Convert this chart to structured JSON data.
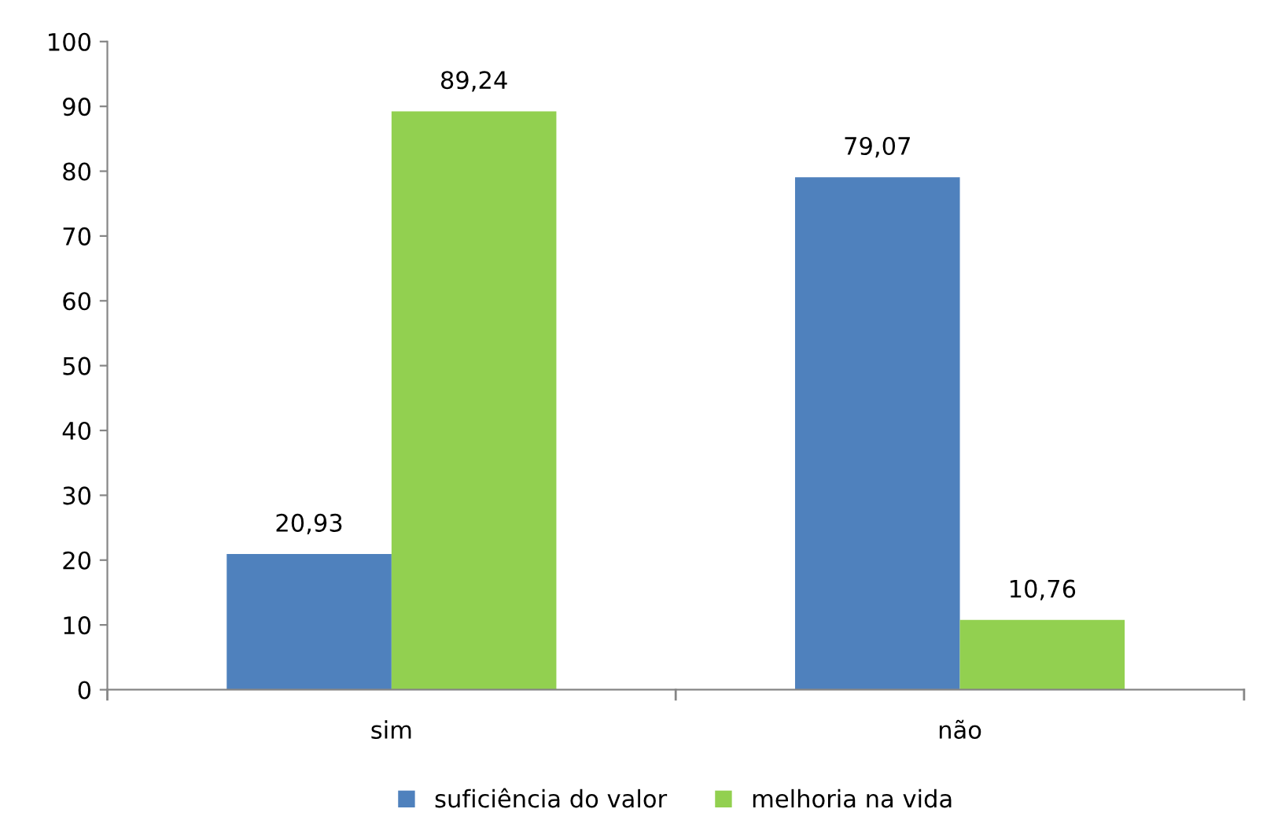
{
  "chart_data": {
    "type": "bar",
    "categories": [
      "sim",
      "não"
    ],
    "series": [
      {
        "name": "suficiência do valor",
        "color": "#4f81bd",
        "values": [
          20.93,
          79.07
        ],
        "value_labels": [
          "20,93",
          "79,07"
        ]
      },
      {
        "name": "melhoria na vida",
        "color": "#92d050",
        "values": [
          89.24,
          10.76
        ],
        "value_labels": [
          "89,24",
          "10,76"
        ]
      }
    ],
    "ylim": [
      0,
      100
    ],
    "yticks": [
      0,
      10,
      20,
      30,
      40,
      50,
      60,
      70,
      80,
      90,
      100
    ],
    "grid": false,
    "legend": "bottom"
  }
}
